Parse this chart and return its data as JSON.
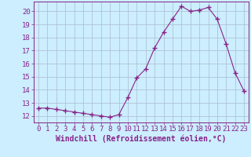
{
  "x": [
    0,
    1,
    2,
    3,
    4,
    5,
    6,
    7,
    8,
    9,
    10,
    11,
    12,
    13,
    14,
    15,
    16,
    17,
    18,
    19,
    20,
    21,
    22,
    23
  ],
  "y": [
    12.6,
    12.6,
    12.5,
    12.4,
    12.3,
    12.2,
    12.1,
    12.0,
    11.9,
    12.1,
    13.4,
    14.9,
    15.6,
    17.2,
    18.4,
    19.4,
    20.4,
    20.0,
    20.1,
    20.3,
    19.4,
    17.5,
    15.3,
    13.9
  ],
  "line_color": "#882288",
  "marker": "+",
  "marker_size": 4,
  "bg_color": "#cceeff",
  "grid_color": "#aabbcc",
  "tick_color": "#882288",
  "label_color": "#882288",
  "xlabel": "Windchill (Refroidissement éolien,°C)",
  "xlim": [
    -0.5,
    23.5
  ],
  "ylim": [
    11.5,
    20.75
  ],
  "yticks": [
    12,
    13,
    14,
    15,
    16,
    17,
    18,
    19,
    20
  ],
  "xticks": [
    0,
    1,
    2,
    3,
    4,
    5,
    6,
    7,
    8,
    9,
    10,
    11,
    12,
    13,
    14,
    15,
    16,
    17,
    18,
    19,
    20,
    21,
    22,
    23
  ],
  "font_size": 6.5
}
